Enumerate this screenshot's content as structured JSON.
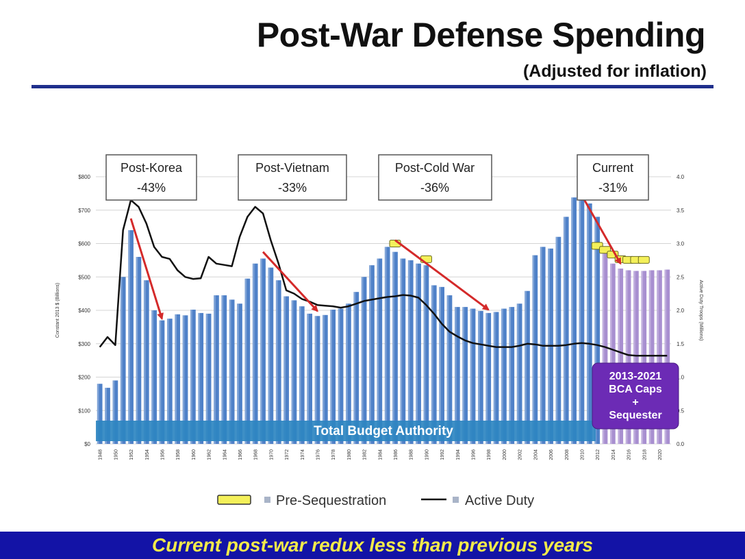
{
  "title": "Post-War Defense Spending",
  "subtitle": "(Adjusted for inflation)",
  "footer": "Current post-war redux less than previous years",
  "chart_data": {
    "type": "bar",
    "x": [
      1948,
      1949,
      1950,
      1951,
      1952,
      1953,
      1954,
      1955,
      1956,
      1957,
      1958,
      1959,
      1960,
      1961,
      1962,
      1963,
      1964,
      1965,
      1966,
      1967,
      1968,
      1969,
      1970,
      1971,
      1972,
      1973,
      1974,
      1975,
      1976,
      1977,
      1978,
      1979,
      1980,
      1981,
      1982,
      1983,
      1984,
      1985,
      1986,
      1987,
      1988,
      1989,
      1990,
      1991,
      1992,
      1993,
      1994,
      1995,
      1996,
      1997,
      1998,
      1999,
      2000,
      2001,
      2002,
      2003,
      2004,
      2005,
      2006,
      2007,
      2008,
      2009,
      2010,
      2011,
      2012,
      2013,
      2014,
      2015,
      2016,
      2017,
      2018,
      2019,
      2020,
      2021
    ],
    "x_tick_labels": [
      "1948",
      "1950",
      "1952",
      "1954",
      "1956",
      "1958",
      "1960",
      "1962",
      "1964",
      "1966",
      "1968",
      "1970",
      "1972",
      "1974",
      "1976",
      "1978",
      "1980",
      "1982",
      "1984",
      "1986",
      "1988",
      "1990",
      "1992",
      "1994",
      "1996",
      "1998",
      "2000",
      "2002",
      "2004",
      "2006",
      "2008",
      "2010",
      "2012",
      "2014",
      "2016",
      "2018",
      "2020"
    ],
    "series": [
      {
        "name": "Total Budget Authority",
        "type": "bar",
        "axis": "left",
        "color": "#4f81c8",
        "values": [
          180,
          168,
          190,
          500,
          640,
          560,
          490,
          400,
          370,
          375,
          388,
          385,
          402,
          392,
          390,
          445,
          445,
          432,
          420,
          495,
          540,
          555,
          528,
          490,
          442,
          430,
          412,
          390,
          383,
          386,
          402,
          405,
          420,
          455,
          500,
          535,
          555,
          590,
          575,
          555,
          550,
          540,
          535,
          475,
          470,
          445,
          410,
          410,
          405,
          398,
          392,
          395,
          405,
          410,
          420,
          458,
          565,
          590,
          585,
          620,
          680,
          738,
          730,
          720,
          680,
          580,
          540,
          525,
          520,
          518,
          518,
          520,
          520,
          522
        ]
      },
      {
        "name": "2013-2021 BCA Caps + Sequester",
        "type": "bar",
        "axis": "left",
        "color": "#a88fd0",
        "x_range": [
          2013,
          2021
        ]
      },
      {
        "name": "Pre-Sequestration",
        "type": "marker",
        "axis": "left",
        "color": "#f4f05a",
        "points": [
          [
            1986,
            600
          ],
          [
            1990,
            553
          ],
          [
            2012,
            593
          ],
          [
            2013,
            581
          ],
          [
            2014,
            567
          ],
          [
            2015,
            553
          ],
          [
            2016,
            551
          ],
          [
            2017,
            551
          ],
          [
            2018,
            551
          ]
        ]
      },
      {
        "name": "Active Duty",
        "type": "line",
        "axis": "right",
        "color": "#111111",
        "values": [
          1.45,
          1.6,
          1.48,
          3.2,
          3.65,
          3.55,
          3.3,
          2.95,
          2.8,
          2.77,
          2.6,
          2.5,
          2.47,
          2.48,
          2.8,
          2.7,
          2.68,
          2.66,
          3.1,
          3.4,
          3.55,
          3.45,
          3.05,
          2.7,
          2.3,
          2.25,
          2.17,
          2.13,
          2.08,
          2.07,
          2.06,
          2.04,
          2.06,
          2.1,
          2.14,
          2.16,
          2.18,
          2.2,
          2.21,
          2.23,
          2.22,
          2.19,
          2.08,
          1.95,
          1.8,
          1.68,
          1.61,
          1.55,
          1.51,
          1.49,
          1.47,
          1.45,
          1.45,
          1.45,
          1.47,
          1.5,
          1.49,
          1.47,
          1.47,
          1.47,
          1.48,
          1.5,
          1.51,
          1.5,
          1.48,
          1.45,
          1.41,
          1.37,
          1.33,
          1.32,
          1.32,
          1.32,
          1.32,
          1.32
        ]
      }
    ],
    "left_axis": {
      "label": "Constant 2013 $ (Billions)",
      "ylim": [
        0,
        800
      ],
      "tick_labels": [
        "$0",
        "$100",
        "$200",
        "$300",
        "$400",
        "$500",
        "$600",
        "$700",
        "$800"
      ]
    },
    "right_axis": {
      "label": "Active Duty Troops (Millions)",
      "ylim": [
        0.0,
        4.0
      ],
      "tick_labels": [
        "0.0",
        "0.5",
        "1.0",
        "1.5",
        "2.0",
        "2.5",
        "3.0",
        "3.5",
        "4.0"
      ]
    },
    "annotations": [
      {
        "title": "Post-Korea",
        "value": "-43%",
        "arrow_from": [
          1952,
          675
        ],
        "arrow_to": [
          1956,
          375
        ]
      },
      {
        "title": "Post-Vietnam",
        "value": "-33%",
        "arrow_from": [
          1969,
          575
        ],
        "arrow_to": [
          1976,
          398
        ]
      },
      {
        "title": "Post-Cold War",
        "value": "-36%",
        "arrow_from": [
          1986,
          610
        ],
        "arrow_to": [
          1998,
          402
        ]
      },
      {
        "title": "Current",
        "value": "-31%",
        "arrow_from": [
          2010,
          745
        ],
        "arrow_to": [
          2015,
          540
        ]
      }
    ],
    "band_label": "Total Budget Authority",
    "callout": {
      "lines": [
        "2013-2021",
        "BCA Caps",
        "+",
        "Sequester"
      ]
    },
    "legend": {
      "placement": "bottom",
      "entries": [
        "Pre-Sequestration",
        "Active Duty"
      ]
    },
    "grid": true
  }
}
